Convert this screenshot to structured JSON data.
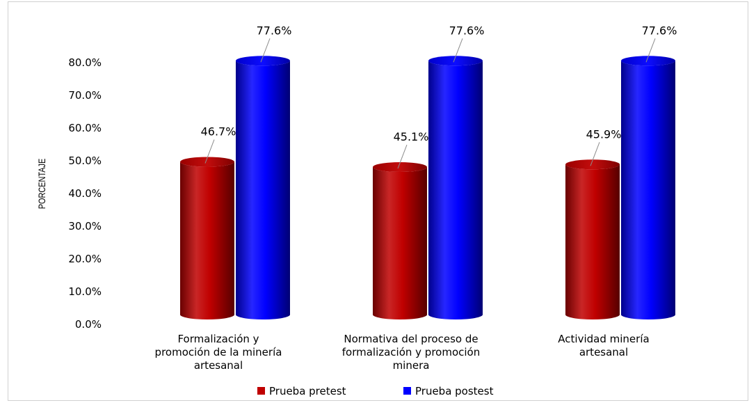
{
  "chart_data": {
    "type": "bar",
    "style": "3d-cylinder",
    "title": "",
    "xlabel": "",
    "ylabel": "PORCENTAJE",
    "ylim": [
      0,
      80
    ],
    "y_ticks": [
      "0.0%",
      "10.0%",
      "20.0%",
      "30.0%",
      "40.0%",
      "50.0%",
      "60.0%",
      "70.0%",
      "80.0%"
    ],
    "grid": false,
    "legend_position": "bottom",
    "categories": [
      [
        "Formalización y",
        "promoción de la minería",
        "artesanal"
      ],
      [
        "Normativa del proceso de",
        "formalización y promoción",
        "minera"
      ],
      [
        "Actividad minería",
        "artesanal"
      ]
    ],
    "series": [
      {
        "name": "Prueba pretest",
        "color": "#c00000",
        "values": [
          46.7,
          45.1,
          45.9
        ],
        "labels": [
          "46.7%",
          "45.1%",
          "45.9%"
        ]
      },
      {
        "name": "Prueba postest",
        "color": "#0000ff",
        "values": [
          77.6,
          77.6,
          77.6
        ],
        "labels": [
          "77.6%",
          "77.6%",
          "77.6%"
        ]
      }
    ]
  }
}
